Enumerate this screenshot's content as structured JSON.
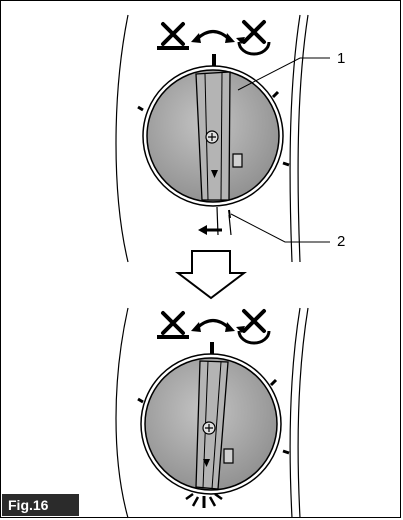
{
  "figure": {
    "label": "Fig.16",
    "callouts": [
      "1",
      "2"
    ]
  },
  "icons": {
    "mode_left": "vacuum-fan-no-rotation-icon",
    "mode_right": "fan-rotation-icon",
    "switch_arrow": "curved-double-arrow-icon",
    "transition": "down-outline-arrow-icon",
    "direction_hint": "left-arrow-icon"
  },
  "colors": {
    "frame": "#000000",
    "label_bg": "#2b2b2b",
    "label_text": "#ffffff",
    "knob_fill": "#a9a9a9",
    "knob_shade": "#8a8a8a"
  }
}
